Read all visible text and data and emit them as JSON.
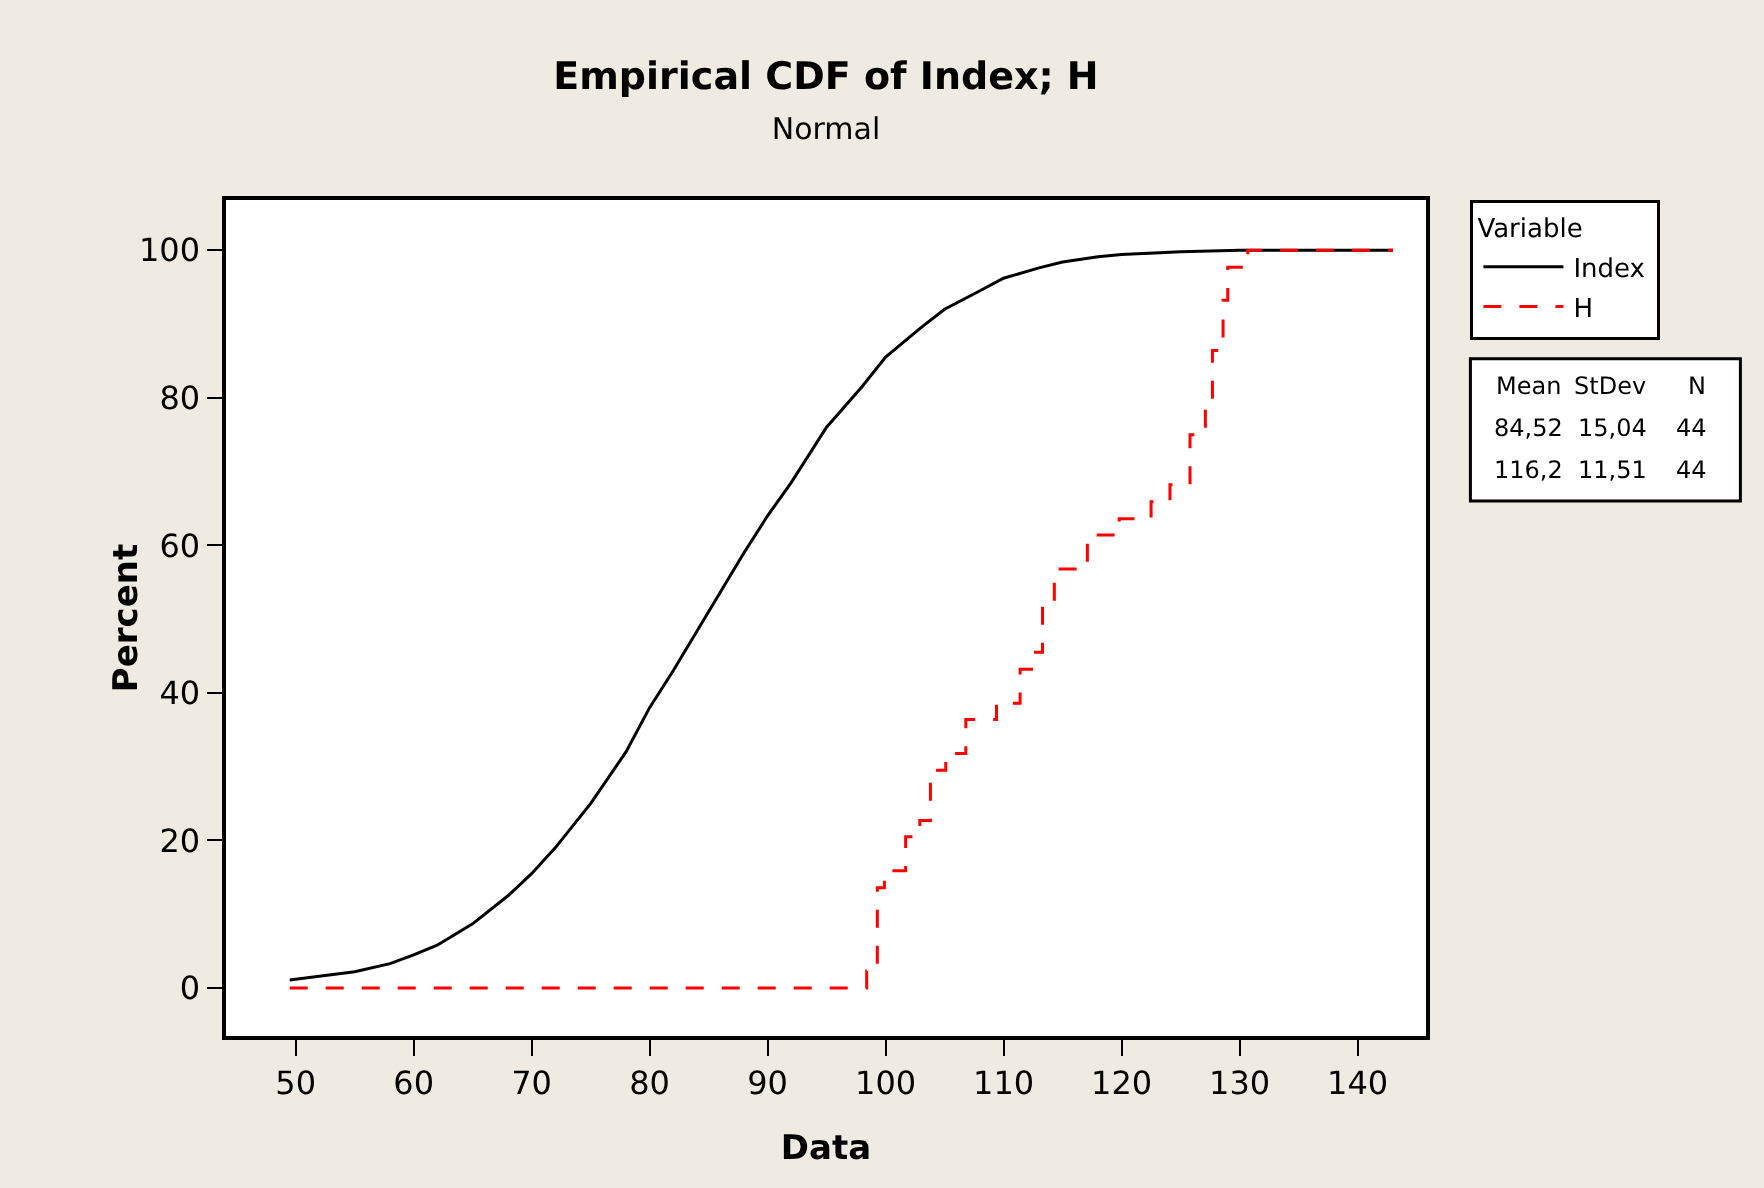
{
  "chart_data": {
    "type": "line",
    "title": "Empirical CDF of Index; H",
    "subtitle": "Normal",
    "xlabel": "Data",
    "ylabel": "Percent",
    "legend_title": "Variable",
    "legend": "top right",
    "grid": false,
    "marker": "none",
    "xlim": [
      44.1,
      145.8
    ],
    "ylim": [
      -6.5,
      106.8
    ],
    "xticks": [
      50,
      60,
      70,
      80,
      90,
      100,
      110,
      120,
      130,
      140
    ],
    "yticks": [
      0,
      20,
      40,
      60,
      80,
      100
    ],
    "series": [
      {
        "name": "Index",
        "type": "line",
        "color": "#000000",
        "line_style": "solid",
        "x": [
          49.5,
          52,
          55,
          58,
          60,
          62,
          65,
          68,
          70,
          72,
          75,
          78,
          80,
          82,
          85,
          88,
          90,
          92,
          95,
          98,
          100,
          103,
          105,
          108,
          110,
          113,
          115,
          118,
          120,
          125,
          130,
          135,
          143
        ],
        "values": [
          1.1,
          1.6,
          2.2,
          3.3,
          4.5,
          5.8,
          8.7,
          12.5,
          15.5,
          19,
          25,
          32,
          38,
          43,
          51,
          59,
          64,
          68.5,
          76,
          81.5,
          85.5,
          89.5,
          92,
          94.5,
          96.2,
          97.6,
          98.4,
          99.1,
          99.4,
          99.8,
          100,
          100,
          100
        ]
      },
      {
        "name": "H",
        "type": "step",
        "color": "#ff0000",
        "line_style": "dashed",
        "x": [
          49.5,
          98.4,
          99.3,
          99.9,
          101.7,
          102.9,
          103.8,
          105.1,
          106.8,
          109.4,
          111.4,
          112.5,
          113.3,
          114.3,
          117.1,
          119.8,
          122.5,
          124.1,
          125.8,
          127.1,
          127.7,
          128.6,
          129.0,
          130.7,
          143
        ],
        "values": [
          0,
          2.3,
          13.6,
          15.9,
          20.5,
          22.7,
          29.5,
          31.8,
          36.4,
          38.6,
          43.2,
          45.5,
          52.3,
          56.8,
          61.4,
          63.6,
          65.9,
          68.2,
          75,
          79.5,
          86.4,
          93.2,
          97.7,
          100,
          100
        ]
      }
    ],
    "annotations": [
      "Mean StDev N",
      "84,52 15,04 44",
      "116,2 11,51 44"
    ]
  }
}
